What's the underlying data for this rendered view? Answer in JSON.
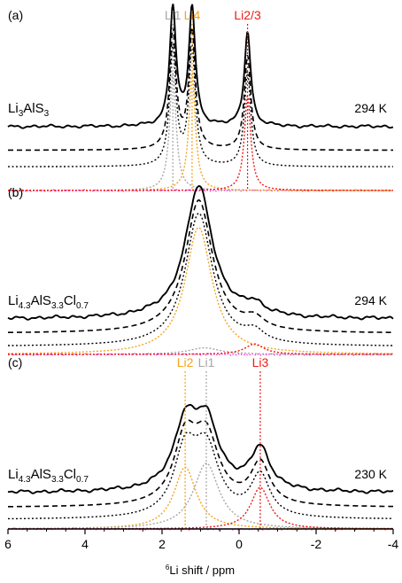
{
  "figure": {
    "xlabel_sup": "6",
    "xlabel_main": "Li shift / ppm"
  },
  "chart_data": {
    "type": "line",
    "x_axis": {
      "label": "6Li shift / ppm",
      "reversed": true,
      "xlim": [
        6,
        -4
      ],
      "ticks": [
        6,
        4,
        2,
        0,
        -2,
        -4
      ],
      "tick_labels": [
        "6",
        "4",
        "2",
        "0",
        "-2",
        "-4"
      ]
    },
    "colors": {
      "experimental": "#000000",
      "fit_total": "#000000",
      "difference": "#ff2bd8",
      "Li1": "#a6a6a6",
      "Li2": "#f5a31a",
      "Li3": "#f01818",
      "Li4": "#f5a31a",
      "Li2/3": "#f01818"
    },
    "panels": [
      {
        "id": "a",
        "label": "(a)",
        "sample": {
          "pre": "Li",
          "s1": "3",
          "mid1": "AlS",
          "s2": "3",
          "mid2": "",
          "s3": ""
        },
        "temperature": "294 K",
        "offsets": {
          "exp": 0.54,
          "fit": 0.34,
          "env": 0.2,
          "diff": 0.0
        },
        "scale": 1.0,
        "ymax": 1.55,
        "noise": 0.012,
        "peaks": [
          {
            "name": "Li1",
            "label": "Li1",
            "pos": 1.72,
            "amp": 1.0,
            "width": 0.1,
            "color_key": "Li1",
            "show_label": true
          },
          {
            "name": "Li4",
            "label": "Li4",
            "pos": 1.22,
            "amp": 1.0,
            "width": 0.1,
            "color_key": "Li4",
            "show_label": true
          },
          {
            "name": "Li2/3",
            "label": "Li2/3",
            "pos": -0.22,
            "amp": 0.8,
            "width": 0.1,
            "color_key": "Li2/3",
            "show_label": true
          }
        ]
      },
      {
        "id": "b",
        "label": "(b)",
        "sample": {
          "pre": "Li",
          "s1": "4.3",
          "mid1": "AlS",
          "s2": "3.3",
          "mid2": "Cl",
          "s3": "0.7"
        },
        "temperature": "294 K",
        "offsets": {
          "exp": 0.27,
          "fit": 0.16,
          "env": 0.06,
          "diff": 0.0
        },
        "scale": 1.0,
        "ymax": 1.3,
        "noise": 0.012,
        "peaks": [
          {
            "name": "Li main",
            "label": "",
            "pos": 1.05,
            "amp": 0.97,
            "width": 0.42,
            "color_key": "Li2",
            "show_label": false
          },
          {
            "name": "Li1",
            "label": "",
            "pos": 0.9,
            "amp": 0.05,
            "width": 0.5,
            "color_key": "Li1",
            "show_label": false
          },
          {
            "name": "Li3",
            "label": "",
            "pos": -0.4,
            "amp": 0.08,
            "width": 0.3,
            "color_key": "Li3",
            "show_label": false
          }
        ]
      },
      {
        "id": "c",
        "label": "(c)",
        "sample": {
          "pre": "Li",
          "s1": "4.3",
          "mid1": "AlS",
          "s2": "3.3",
          "mid2": "Cl",
          "s3": "0.7"
        },
        "temperature": "230 K",
        "offsets": {
          "exp": 0.27,
          "fit": 0.16,
          "env": 0.07,
          "diff": 0.0
        },
        "scale": 1.0,
        "ymax": 1.3,
        "noise": 0.012,
        "peaks": [
          {
            "name": "Li2",
            "label": "Li2",
            "pos": 1.4,
            "amp": 0.46,
            "width": 0.35,
            "color_key": "Li2",
            "show_label": true
          },
          {
            "name": "Li1",
            "label": "Li1",
            "pos": 0.85,
            "amp": 0.49,
            "width": 0.4,
            "color_key": "Li1",
            "show_label": true
          },
          {
            "name": "Li3",
            "label": "Li3",
            "pos": -0.55,
            "amp": 0.31,
            "width": 0.3,
            "color_key": "Li3",
            "show_label": true
          }
        ]
      }
    ]
  }
}
